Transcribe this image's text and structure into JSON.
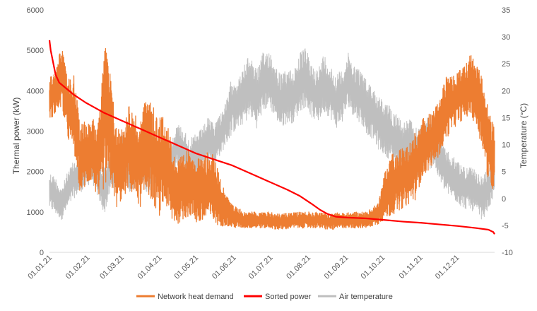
{
  "chart_data": {
    "type": "line",
    "title": "",
    "ylabel": "Thermal power (kW)",
    "y2label": "Temperature (°C)",
    "ylim": [
      0,
      6000
    ],
    "y2lim": [
      -10,
      35
    ],
    "yticks": [
      "0",
      "1000",
      "2000",
      "3000",
      "4000",
      "5000",
      "6000"
    ],
    "y2ticks": [
      "-10",
      "-5",
      "0",
      "5",
      "10",
      "15",
      "20",
      "25",
      "30",
      "35"
    ],
    "xticks": [
      "01.01.21",
      "01.02.21",
      "01.03.21",
      "01.04.21",
      "01.05.21",
      "01.06.21",
      "01.07.21",
      "01.08.21",
      "01.09.21",
      "01.10.21",
      "01.11.21",
      "01.12.21"
    ],
    "xtick_days": [
      0,
      31,
      59,
      90,
      120,
      151,
      181,
      212,
      243,
      273,
      304,
      334
    ],
    "xlim": [
      0,
      365
    ],
    "grid": "none",
    "legend_position": "bottom",
    "series": [
      {
        "name": "Network heat demand",
        "axis": "left",
        "color": "#ED7D31",
        "x": [
          0,
          5,
          10,
          15,
          20,
          25,
          30,
          35,
          40,
          45,
          50,
          55,
          60,
          65,
          70,
          75,
          80,
          85,
          90,
          95,
          100,
          105,
          110,
          115,
          120,
          125,
          130,
          135,
          140,
          145,
          150,
          160,
          170,
          180,
          190,
          200,
          210,
          220,
          230,
          240,
          250,
          260,
          265,
          270,
          275,
          280,
          285,
          290,
          295,
          300,
          305,
          310,
          315,
          320,
          325,
          330,
          335,
          340,
          345,
          350,
          355,
          360,
          365
        ],
        "y": [
          3900,
          4100,
          4300,
          3600,
          3500,
          2400,
          2500,
          2700,
          2300,
          3900,
          3200,
          2200,
          2300,
          2800,
          2500,
          2400,
          3100,
          2800,
          2400,
          2700,
          1800,
          1500,
          1600,
          1900,
          1500,
          1500,
          1700,
          1600,
          1300,
          1000,
          900,
          800,
          800,
          800,
          750,
          800,
          800,
          800,
          750,
          800,
          800,
          800,
          900,
          1000,
          1300,
          1600,
          1700,
          1800,
          1900,
          2200,
          2600,
          2700,
          2900,
          3100,
          3600,
          3700,
          3900,
          4000,
          4100,
          3900,
          3500,
          2500,
          2300
        ],
        "range_low": [
          3300,
          3400,
          3600,
          2800,
          2500,
          1500,
          1600,
          1800,
          1200,
          1600,
          1700,
          1100,
          1300,
          1600,
          1300,
          1100,
          1500,
          1200,
          900,
          1200,
          700,
          700,
          800,
          900,
          700,
          700,
          800,
          700,
          650,
          650,
          600,
          600,
          600,
          600,
          550,
          600,
          600,
          600,
          550,
          600,
          600,
          600,
          650,
          700,
          800,
          900,
          1000,
          1100,
          1200,
          1300,
          1800,
          2000,
          2200,
          2400,
          2800,
          3000,
          3200,
          3300,
          3400,
          3100,
          2600,
          1700,
          1400
        ],
        "range_high": [
          4300,
          4600,
          5100,
          4300,
          4400,
          3200,
          3300,
          3400,
          3200,
          5400,
          4400,
          3100,
          3100,
          3700,
          3400,
          3300,
          4000,
          3600,
          3300,
          3600,
          2700,
          2300,
          2400,
          2600,
          2400,
          2300,
          2500,
          2400,
          1900,
          1400,
          1200,
          1000,
          1000,
          1000,
          950,
          1000,
          1000,
          1000,
          950,
          1000,
          1000,
          1000,
          1100,
          1300,
          2000,
          2400,
          2500,
          2600,
          2700,
          3000,
          3300,
          3400,
          3500,
          3800,
          4400,
          4400,
          4500,
          4600,
          4900,
          4700,
          4300,
          3500,
          3100
        ]
      },
      {
        "name": "Sorted power",
        "axis": "left",
        "color": "#FF0000",
        "x": [
          0,
          1,
          3,
          5,
          8,
          12,
          20,
          30,
          45,
          60,
          75,
          90,
          105,
          120,
          135,
          150,
          165,
          180,
          195,
          205,
          215,
          222,
          228,
          235,
          245,
          260,
          275,
          290,
          305,
          320,
          335,
          350,
          360,
          364,
          365
        ],
        "y": [
          5250,
          5000,
          4700,
          4400,
          4200,
          4100,
          3900,
          3700,
          3450,
          3250,
          3050,
          2850,
          2650,
          2450,
          2300,
          2150,
          1950,
          1750,
          1550,
          1400,
          1200,
          1050,
          950,
          880,
          860,
          840,
          800,
          760,
          730,
          690,
          650,
          600,
          560,
          500,
          450
        ]
      },
      {
        "name": "Air temperature",
        "axis": "right",
        "color": "#BFBFBF",
        "x": [
          0,
          5,
          10,
          15,
          20,
          25,
          30,
          35,
          40,
          45,
          50,
          55,
          60,
          65,
          70,
          75,
          80,
          85,
          90,
          95,
          100,
          105,
          110,
          115,
          120,
          125,
          130,
          135,
          140,
          145,
          150,
          155,
          160,
          165,
          170,
          175,
          180,
          185,
          190,
          195,
          200,
          205,
          210,
          215,
          220,
          225,
          230,
          235,
          240,
          245,
          250,
          255,
          260,
          265,
          270,
          275,
          280,
          285,
          290,
          295,
          300,
          305,
          310,
          315,
          320,
          325,
          330,
          335,
          340,
          345,
          350,
          355,
          360,
          365
        ],
        "y": [
          1,
          0,
          -2,
          1,
          3,
          4,
          5,
          6,
          3,
          1,
          5,
          7,
          8,
          5,
          6,
          7,
          5,
          6,
          7,
          5,
          7,
          10,
          9,
          7,
          8,
          9,
          11,
          10,
          12,
          14,
          17,
          17,
          19,
          20,
          18,
          21,
          22,
          20,
          18,
          19,
          19,
          21,
          22,
          20,
          19,
          21,
          20,
          18,
          19,
          22,
          20,
          19,
          17,
          16,
          14,
          13,
          12,
          11,
          9,
          10,
          8,
          9,
          10,
          11,
          7,
          5,
          4,
          3,
          2,
          2,
          1,
          0,
          2,
          5
        ],
        "range_low": [
          -2,
          -3,
          -4,
          -2,
          0,
          1,
          2,
          3,
          0,
          -3,
          1,
          3,
          4,
          1,
          2,
          3,
          1,
          2,
          3,
          1,
          3,
          6,
          5,
          3,
          4,
          5,
          7,
          6,
          8,
          10,
          12,
          13,
          14,
          15,
          13,
          16,
          17,
          15,
          13,
          14,
          14,
          16,
          17,
          15,
          14,
          16,
          15,
          13,
          14,
          17,
          15,
          14,
          12,
          11,
          9,
          8,
          7,
          6,
          4,
          5,
          3,
          4,
          5,
          6,
          3,
          1,
          0,
          -1,
          -2,
          -2,
          -3,
          -4,
          -2,
          0
        ],
        "range_high": [
          5,
          4,
          2,
          5,
          7,
          8,
          9,
          10,
          7,
          6,
          9,
          11,
          12,
          9,
          10,
          11,
          9,
          10,
          11,
          9,
          11,
          14,
          13,
          11,
          12,
          13,
          15,
          14,
          16,
          18,
          23,
          22,
          25,
          27,
          24,
          27,
          28,
          25,
          23,
          24,
          24,
          27,
          28,
          25,
          24,
          27,
          25,
          23,
          24,
          27,
          25,
          24,
          22,
          21,
          19,
          18,
          17,
          16,
          14,
          15,
          13,
          14,
          15,
          16,
          11,
          9,
          8,
          7,
          6,
          6,
          5,
          4,
          6,
          9
        ]
      }
    ]
  }
}
